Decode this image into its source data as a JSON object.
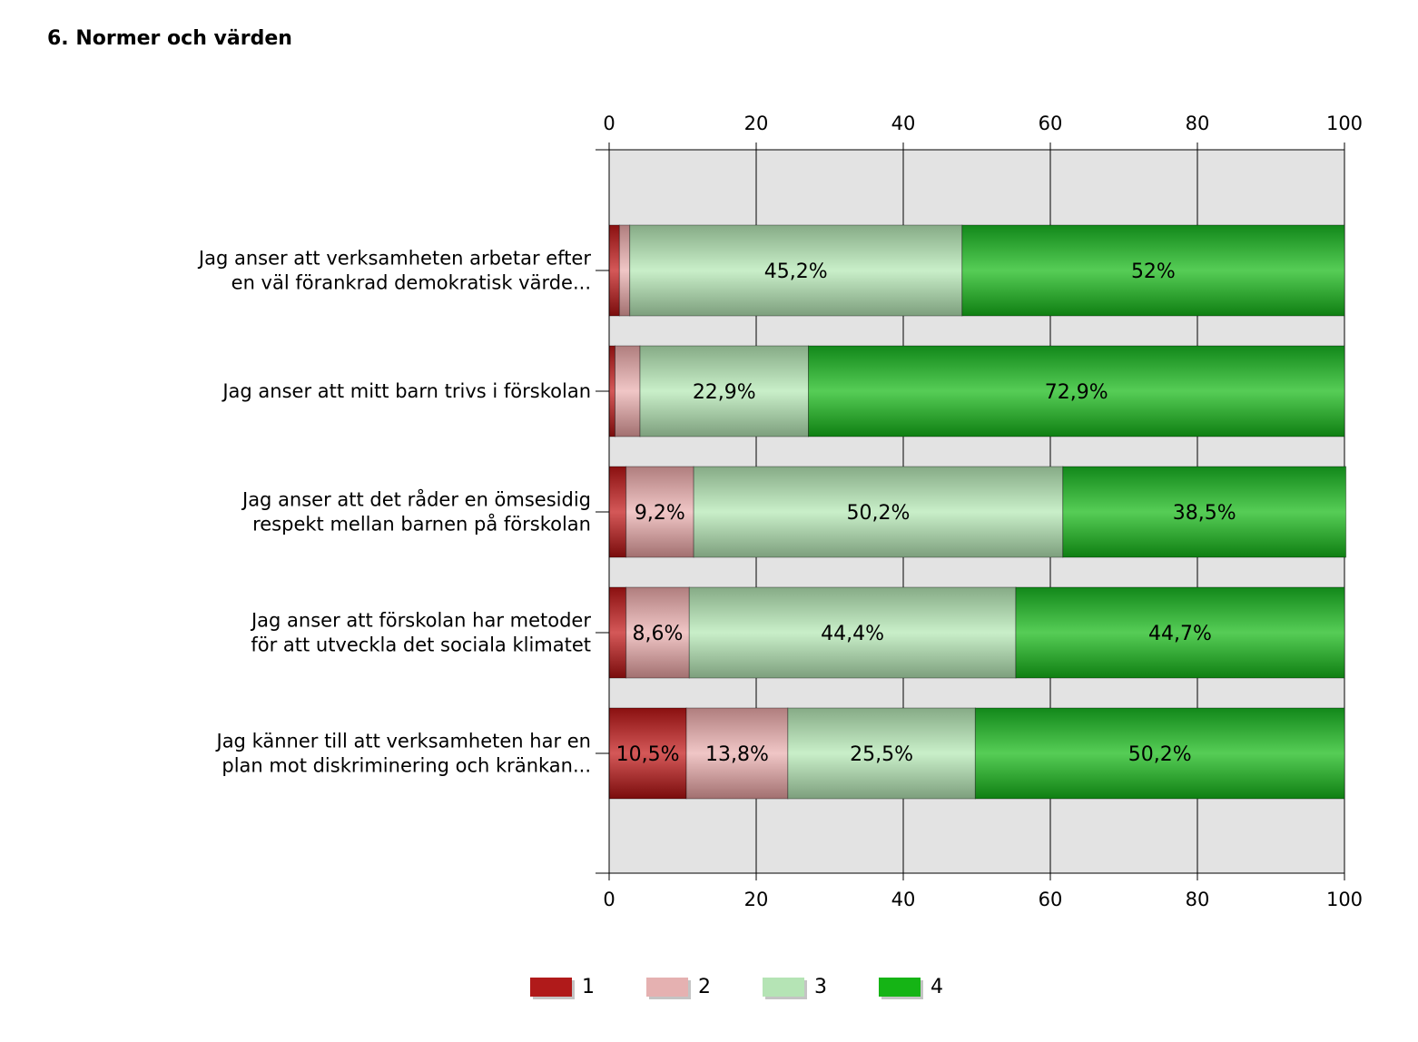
{
  "title": "6. Normer och värden",
  "chart_data": {
    "type": "bar",
    "orientation": "horizontal",
    "stacked": true,
    "xlim": [
      0,
      100
    ],
    "x_ticks": [
      0,
      20,
      40,
      60,
      80,
      100
    ],
    "x_tick_labels": [
      "0",
      "20",
      "40",
      "60",
      "80",
      "100"
    ],
    "x_axis_position": "top and bottom",
    "grid": true,
    "legend_position": "bottom-center",
    "categories": [
      [
        "Jag anser att verksamheten arbetar efter",
        "en väl förankrad demokratisk värde..."
      ],
      [
        "Jag anser att mitt barn trivs i förskolan"
      ],
      [
        "Jag anser att det råder en ömsesidig",
        "respekt mellan barnen på förskolan"
      ],
      [
        "Jag anser att förskolan har metoder",
        "för att utveckla det sociala klimatet"
      ],
      [
        "Jag känner till att verksamheten har en",
        "plan mot diskriminering och kränkan..."
      ]
    ],
    "series": [
      {
        "name": "1",
        "color": "#b01a1a",
        "values": [
          1.4,
          0.8,
          2.3,
          2.3,
          10.5
        ],
        "labels": [
          "",
          "",
          "",
          "",
          "10,5%"
        ]
      },
      {
        "name": "2",
        "color": "#e5b1b1",
        "values": [
          1.4,
          3.4,
          9.2,
          8.6,
          13.8
        ],
        "labels": [
          "",
          "",
          "9,2%",
          "8,6%",
          "13,8%"
        ]
      },
      {
        "name": "3",
        "color": "#b5e4b5",
        "values": [
          45.2,
          22.9,
          50.2,
          44.4,
          25.5
        ],
        "labels": [
          "45,2%",
          "22,9%",
          "50,2%",
          "44,4%",
          "25,5%"
        ]
      },
      {
        "name": "4",
        "color": "#15b415",
        "values": [
          52.0,
          72.9,
          38.5,
          44.7,
          50.2
        ],
        "labels": [
          "52%",
          "72,9%",
          "38,5%",
          "44,7%",
          "50,2%"
        ]
      }
    ]
  }
}
